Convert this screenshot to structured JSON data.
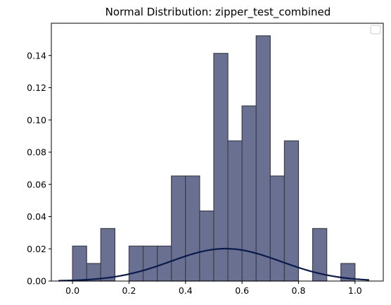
{
  "chart_data": {
    "type": "bar",
    "title": "Normal Distribution: zipper_test_combined",
    "xlabel": "",
    "ylabel": "",
    "xlim": [
      -0.075,
      1.1
    ],
    "ylim": [
      0,
      0.16
    ],
    "x_ticks": [
      "0.0",
      "0.2",
      "0.4",
      "0.6",
      "0.8",
      "1.0"
    ],
    "y_ticks": [
      "0.00",
      "0.02",
      "0.04",
      "0.06",
      "0.08",
      "0.10",
      "0.12",
      "0.14"
    ],
    "histogram": {
      "bin_edges": [
        0.0,
        0.05,
        0.1,
        0.15,
        0.2,
        0.25,
        0.3,
        0.35,
        0.4,
        0.45,
        0.5,
        0.55,
        0.6,
        0.65,
        0.7,
        0.75,
        0.8,
        0.85,
        0.9,
        0.95,
        1.0
      ],
      "values": [
        0.0217,
        0.0109,
        0.0326,
        0.0,
        0.0217,
        0.0217,
        0.0217,
        0.0652,
        0.0652,
        0.0435,
        0.1413,
        0.087,
        0.1087,
        0.1522,
        0.0652,
        0.087,
        0.0,
        0.0326,
        0.0,
        0.0109
      ],
      "fill_color": "#697091",
      "edge_color": "#3a3f4a"
    },
    "curve": {
      "mean": 0.542,
      "std": 0.195,
      "peak": 0.0201,
      "x_range": [
        -0.05,
        1.05
      ],
      "color": "#0a1a4a"
    },
    "legend": {
      "location": "upper right",
      "entries": []
    },
    "grid": false
  }
}
